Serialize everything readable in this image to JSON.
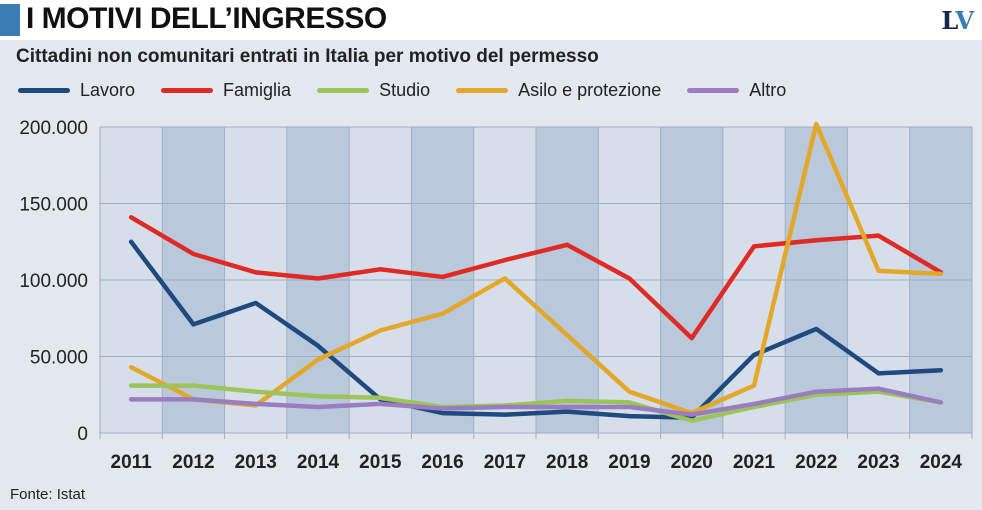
{
  "header": {
    "title": "I MOTIVI DELL’INGRESSO",
    "logo": "LV"
  },
  "source": "Fonte: Istat",
  "colors": {
    "Lavoro": "#1e4a80",
    "Famiglia": "#e02a26",
    "Studio": "#9cc45a",
    "Asilo e protezione": "#e3a72a",
    "Altro": "#9a7dbf"
  },
  "chart_data": {
    "type": "line",
    "title": "Cittadini non comunitari entrati in Italia per motivo del permesso",
    "xlabel": "",
    "ylabel": "",
    "x": [
      "2011",
      "2012",
      "2013",
      "2014",
      "2015",
      "2016",
      "2017",
      "2018",
      "2019",
      "2020",
      "2021",
      "2022",
      "2023",
      "2024"
    ],
    "ylim": [
      0,
      200000
    ],
    "yticks": [
      {
        "v": 0,
        "label": "0"
      },
      {
        "v": 50000,
        "label": "50.000"
      },
      {
        "v": 100000,
        "label": "100.000"
      },
      {
        "v": 150000,
        "label": "150.000"
      },
      {
        "v": 200000,
        "label": "200.000"
      }
    ],
    "legend": "top-left",
    "grid": true,
    "series": [
      {
        "name": "Lavoro",
        "values": [
          125000,
          71000,
          85000,
          57000,
          22000,
          13000,
          12000,
          14000,
          11000,
          10000,
          51000,
          68000,
          39000,
          41000
        ]
      },
      {
        "name": "Famiglia",
        "values": [
          141000,
          117000,
          105000,
          101000,
          107000,
          102000,
          113000,
          123000,
          101000,
          62000,
          122000,
          126000,
          129000,
          105000
        ]
      },
      {
        "name": "Studio",
        "values": [
          31000,
          31000,
          27000,
          24000,
          23000,
          17000,
          18000,
          21000,
          20000,
          8000,
          17000,
          25000,
          27000,
          20000
        ]
      },
      {
        "name": "Asilo e protezione",
        "values": [
          43000,
          22000,
          18000,
          48000,
          67000,
          78000,
          101000,
          64000,
          27000,
          13000,
          31000,
          202000,
          106000,
          104000
        ]
      },
      {
        "name": "Altro",
        "values": [
          22000,
          22000,
          19000,
          17000,
          19000,
          16000,
          17000,
          17000,
          17000,
          12000,
          19000,
          27000,
          29000,
          20000
        ]
      }
    ]
  }
}
